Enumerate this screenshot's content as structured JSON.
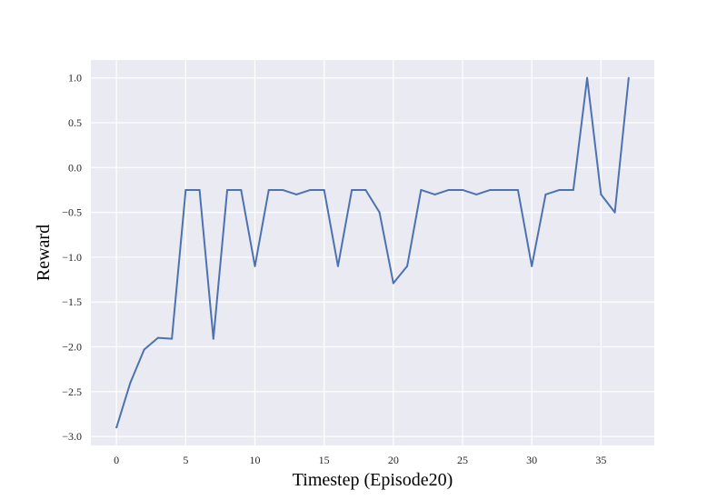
{
  "chart_data": {
    "type": "line",
    "title": "",
    "xlabel": "Timestep (Episode20)",
    "ylabel": "Reward",
    "xlim": [
      -1.85,
      38.85
    ],
    "ylim": [
      -3.1,
      1.2
    ],
    "xticks": [
      0,
      5,
      10,
      15,
      20,
      25,
      30,
      35
    ],
    "yticks": [
      -3.0,
      -2.5,
      -2.0,
      -1.5,
      -1.0,
      -0.5,
      0.0,
      0.5,
      1.0
    ],
    "ytick_labels": [
      "−3.0",
      "−2.5",
      "−2.0",
      "−1.5",
      "−1.0",
      "−0.5",
      "0.0",
      "0.5",
      "1.0"
    ],
    "grid": true,
    "legend": "none",
    "colors": {
      "background": "#eaeaf2",
      "grid": "#ffffff",
      "line": "#4c72b0"
    },
    "series": [
      {
        "name": "",
        "x": [
          0,
          1,
          2,
          3,
          4,
          5,
          6,
          7,
          8,
          9,
          10,
          11,
          12,
          13,
          14,
          15,
          16,
          17,
          18,
          19,
          20,
          21,
          22,
          23,
          24,
          25,
          26,
          27,
          28,
          29,
          30,
          31,
          32,
          33,
          34,
          35,
          36,
          37
        ],
        "values": [
          -2.9,
          -2.4,
          -2.03,
          -1.9,
          -1.91,
          -0.25,
          -0.25,
          -1.91,
          -0.25,
          -0.25,
          -1.1,
          -0.25,
          -0.25,
          -0.3,
          -0.25,
          -0.25,
          -1.1,
          -0.25,
          -0.25,
          -0.5,
          -1.29,
          -1.1,
          -0.25,
          -0.3,
          -0.25,
          -0.25,
          -0.3,
          -0.25,
          -0.25,
          -0.25,
          -1.1,
          -0.3,
          -0.25,
          -0.25,
          1.0,
          -0.3,
          -0.5,
          1.0
        ]
      }
    ]
  }
}
